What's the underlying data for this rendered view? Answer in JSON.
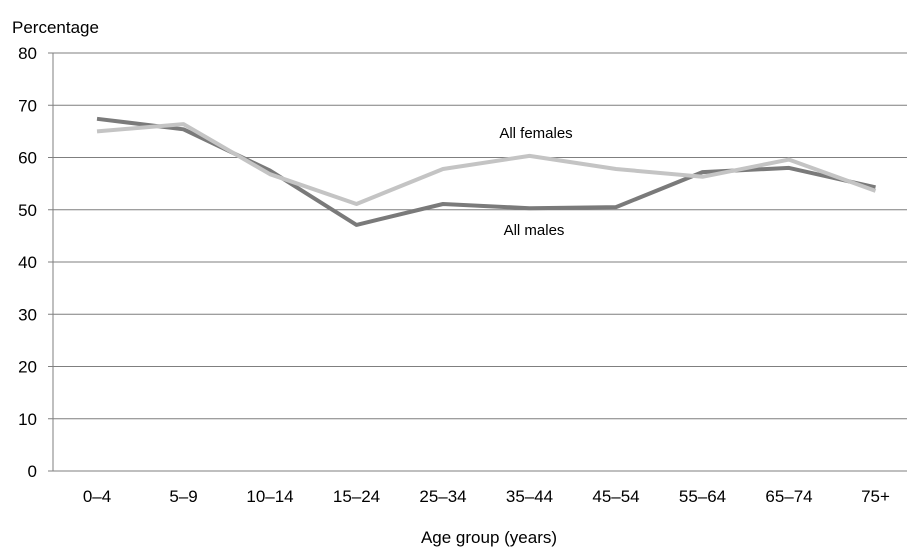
{
  "chart_data": {
    "type": "line",
    "ylabel": "Percentage",
    "xlabel": "Age group (years)",
    "ylim": [
      0,
      80
    ],
    "yticks": [
      0,
      10,
      20,
      30,
      40,
      50,
      60,
      70,
      80
    ],
    "categories": [
      "0–4",
      "5–9",
      "10–14",
      "15–24",
      "25–34",
      "35–44",
      "45–54",
      "55–64",
      "65–74",
      "75+"
    ],
    "grid": true,
    "series": [
      {
        "name": "All males",
        "color": "#7a7a7a",
        "values": [
          67.4,
          65.4,
          57.5,
          47.1,
          51.1,
          50.3,
          50.5,
          57.2,
          58.0,
          54.3
        ]
      },
      {
        "name": "All females",
        "color": "#c4c4c4",
        "values": [
          65.0,
          66.4,
          56.8,
          51.1,
          57.8,
          60.3,
          57.8,
          56.3,
          59.6,
          53.6
        ]
      }
    ],
    "colors": {
      "grid": "#7f7f7f",
      "axis": "#7f7f7f"
    }
  }
}
